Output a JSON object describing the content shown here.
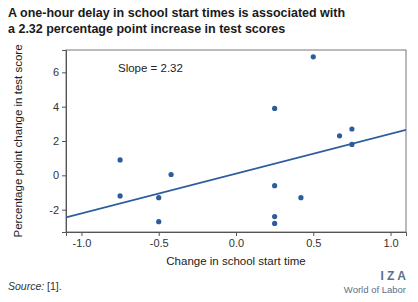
{
  "chart_data": {
    "type": "scatter",
    "title": [
      "A one-hour delay in school start times is associated with",
      "a 2.32 percentage point increase in test scores"
    ],
    "annotation": "Slope = 2.32",
    "x_label": "Change in school start time",
    "y_label": "Percentage point change in test score",
    "source": [
      "Source:",
      " [1]."
    ],
    "logo_text": [
      "I Z A",
      "World of Labor"
    ],
    "color": "#2b5d9c",
    "marker": "circle",
    "x": [
      -0.75,
      -0.75,
      -0.5,
      -0.5,
      -0.42,
      0.25,
      0.25,
      0.25,
      0.25,
      0.42,
      0.5,
      0.67,
      0.75,
      0.75
    ],
    "values": [
      0.9,
      -1.2,
      -1.3,
      -2.7,
      0.05,
      3.9,
      -0.6,
      -2.4,
      -2.8,
      -1.3,
      6.9,
      2.3,
      2.7,
      1.8
    ],
    "fit_line": {
      "x": [
        -1.1,
        1.1
      ],
      "values": [
        -2.45,
        2.65
      ]
    },
    "xlim": [
      -1.1,
      1.1
    ],
    "ylim": [
      -3.3,
      7.3
    ],
    "xticks": [
      {
        "value": -1,
        "label": "-1.0"
      },
      {
        "value": -0.5,
        "label": "-0.5"
      },
      {
        "value": 0,
        "label": "0.0"
      },
      {
        "value": 0.5,
        "label": "0.5"
      },
      {
        "value": 1,
        "label": "1.0"
      }
    ],
    "yticks": [
      -2,
      0,
      2,
      4,
      6
    ],
    "grid": false
  }
}
